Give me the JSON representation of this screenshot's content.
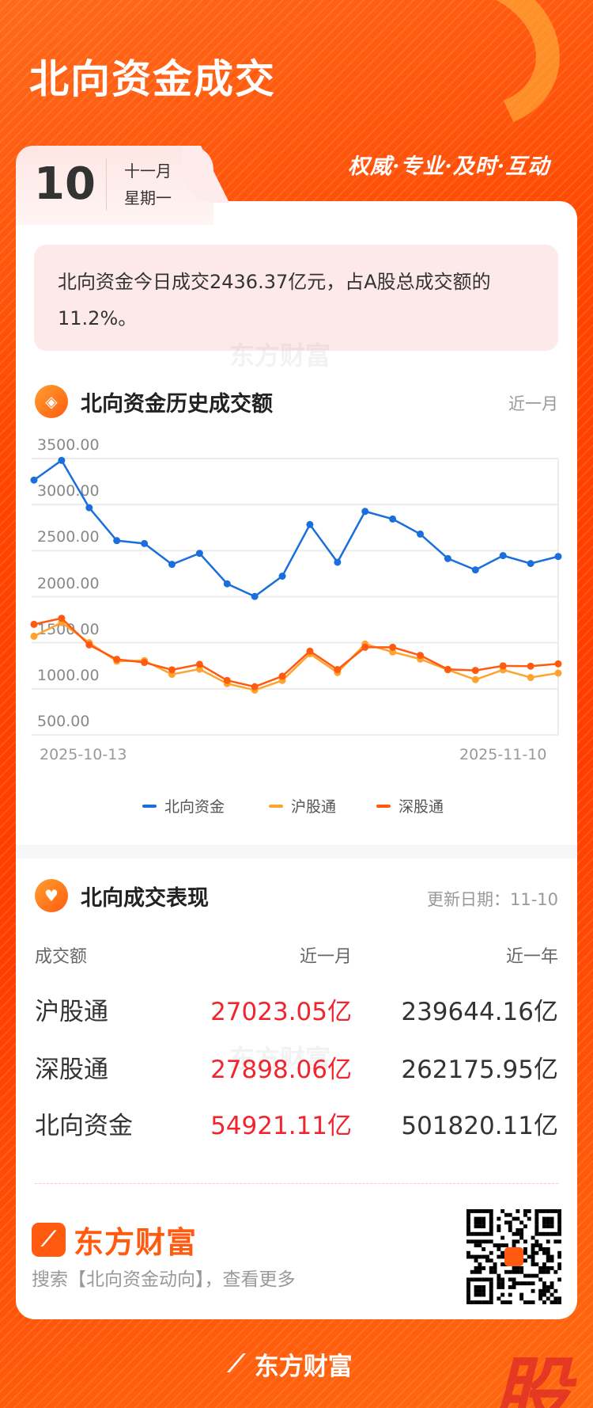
{
  "header": {
    "title": "北向资金成交",
    "slogan": "权威·专业·及时·互动"
  },
  "date": {
    "day": "10",
    "month": "十一月",
    "weekday": "星期一"
  },
  "summary": {
    "text": "北向资金今日成交2436.37亿元，占A股总成交额的11.2%。"
  },
  "watermark": "东方财富",
  "history": {
    "title": "北向资金历史成交额",
    "period": "近一月",
    "icon": "coin-icon"
  },
  "chart_data": {
    "type": "line",
    "x": [
      "2025-10-13",
      "",
      "",
      "",
      "",
      "",
      "",
      "",
      "",
      "",
      "",
      "",
      "",
      "",
      "",
      "",
      "",
      "",
      "",
      "2025-11-10"
    ],
    "xtick_labels": [
      "2025-10-13",
      "2025-11-10"
    ],
    "ylim": [
      500,
      3500
    ],
    "yticks": [
      "3500.00",
      "3000.00",
      "2500.00",
      "2000.00",
      "1500.00",
      "1000.00",
      "500.00"
    ],
    "grid": true,
    "legend_position": "bottom",
    "series": [
      {
        "name": "北向资金",
        "color": "#1a6fdc",
        "values": [
          3266,
          3480,
          2966,
          2609,
          2577,
          2351,
          2471,
          2140,
          2003,
          2223,
          2783,
          2374,
          2926,
          2843,
          2680,
          2414,
          2291,
          2446,
          2360,
          2436.37
        ]
      },
      {
        "name": "沪股通",
        "color": "#ffa22e",
        "values": [
          1571,
          1720,
          1500,
          1300,
          1306,
          1157,
          1214,
          1057,
          986,
          1091,
          1380,
          1177,
          1486,
          1400,
          1323,
          1206,
          1100,
          1206,
          1123,
          1171
        ]
      },
      {
        "name": "深股通",
        "color": "#ff5a10",
        "values": [
          1700,
          1766,
          1477,
          1320,
          1286,
          1206,
          1266,
          1091,
          1023,
          1137,
          1409,
          1209,
          1451,
          1451,
          1363,
          1211,
          1200,
          1249,
          1246,
          1271
        ]
      }
    ]
  },
  "performance": {
    "title": "北向成交表现",
    "icon": "handshake-heart-icon",
    "updated": "更新日期：11-10",
    "headers": [
      "成交额",
      "近一月",
      "近一年"
    ],
    "rows": [
      {
        "name": "沪股通",
        "month": "27023.05亿",
        "year": "239644.16亿"
      },
      {
        "name": "深股通",
        "month": "27898.06亿",
        "year": "262175.95亿"
      },
      {
        "name": "北向资金",
        "month": "54921.11亿",
        "year": "501820.11亿"
      }
    ]
  },
  "promo": {
    "brand": "东方财富",
    "search": "搜索【北向资金动向】，查看更多"
  },
  "footer": {
    "brand": "东方财富",
    "badge": "股"
  }
}
